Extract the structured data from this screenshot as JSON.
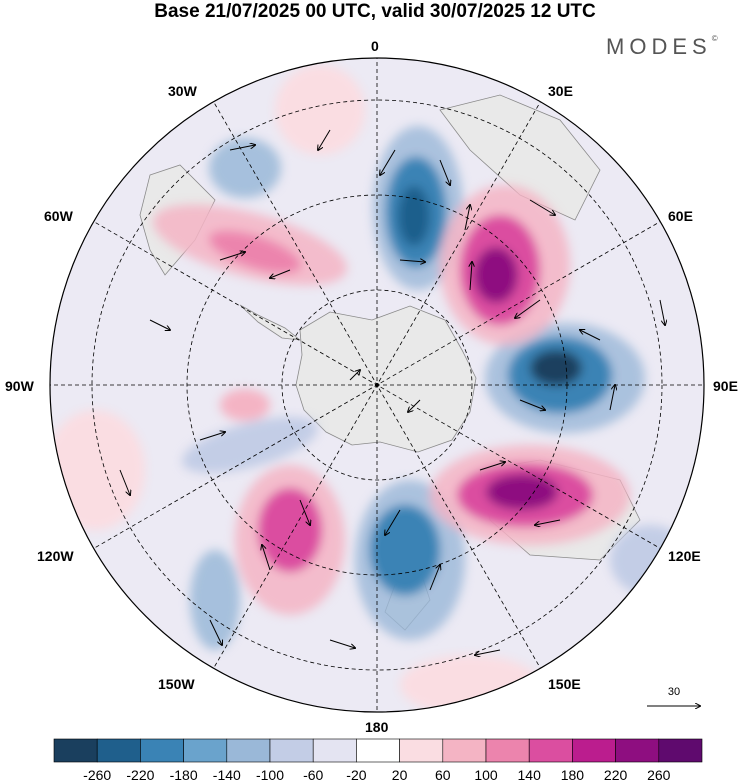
{
  "title": "Base 21/07/2025 00 UTC, valid 30/07/2025 12 UTC",
  "brand": "MODES",
  "brand_mark": "©",
  "lon_labels": {
    "top": "0",
    "top_right": "30E",
    "right_upper": "60E",
    "right": "90E",
    "right_lower": "120E",
    "bottom_right": "150E",
    "bottom": "180",
    "bottom_left": "150W",
    "left_lower": "120W",
    "left": "90W",
    "left_upper": "60W",
    "top_left": "30W"
  },
  "reference_vector": "30",
  "colorbar": {
    "ticks": [
      "-260",
      "-220",
      "-180",
      "-140",
      "-100",
      "-60",
      "-20",
      "20",
      "60",
      "100",
      "140",
      "180",
      "220",
      "260"
    ],
    "colors": [
      "#1a3f5e",
      "#1f5f8c",
      "#3a83b5",
      "#6aa3cc",
      "#9ab8d8",
      "#c3cde6",
      "#e4e4f2",
      "#ffffff",
      "#fadde2",
      "#f4b4c4",
      "#ec84ad",
      "#db4ea0",
      "#bb1d8e",
      "#8e0e80",
      "#5f0a6e"
    ]
  },
  "colors": {
    "land": "#ececec",
    "coast": "#8a8a8a",
    "grid": "#000000"
  }
}
